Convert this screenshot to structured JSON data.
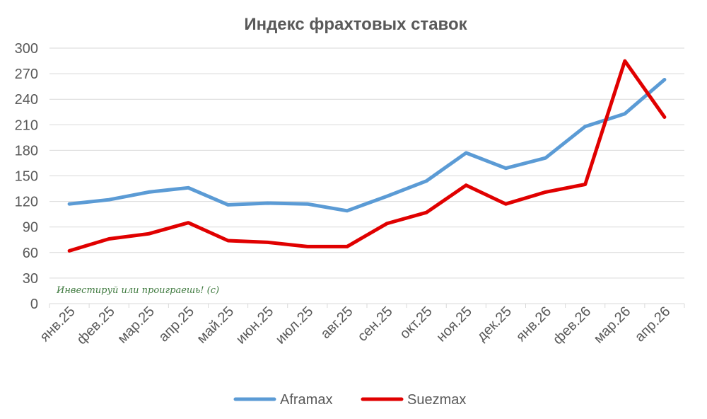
{
  "chart_data": {
    "type": "line",
    "title": "Индекс фрахтовых ставок",
    "categories": [
      "янв.25",
      "фев.25",
      "мар.25",
      "апр.25",
      "май.25",
      "июн.25",
      "июл.25",
      "авг.25",
      "сен.25",
      "окт.25",
      "ноя.25",
      "дек.25",
      "янв.26",
      "фев.26",
      "мар.26",
      "апр.26"
    ],
    "series": [
      {
        "name": "Aframax",
        "color": "#5b9bd5",
        "values": [
          117,
          122,
          131,
          136,
          116,
          118,
          117,
          109,
          126,
          144,
          177,
          159,
          171,
          208,
          223,
          263
        ]
      },
      {
        "name": "Suezmax",
        "color": "#e00000",
        "values": [
          62,
          76,
          82,
          95,
          74,
          72,
          67,
          67,
          94,
          107,
          139,
          117,
          131,
          140,
          285,
          219
        ]
      }
    ],
    "ylim": [
      0,
      300
    ],
    "yticks": [
      "0",
      "30",
      "60",
      "90",
      "120",
      "150",
      "180",
      "210",
      "240",
      "270",
      "300"
    ],
    "grid": true,
    "legend": "bottom",
    "annotation": "Инвестируй или проиграешь! (с)"
  }
}
